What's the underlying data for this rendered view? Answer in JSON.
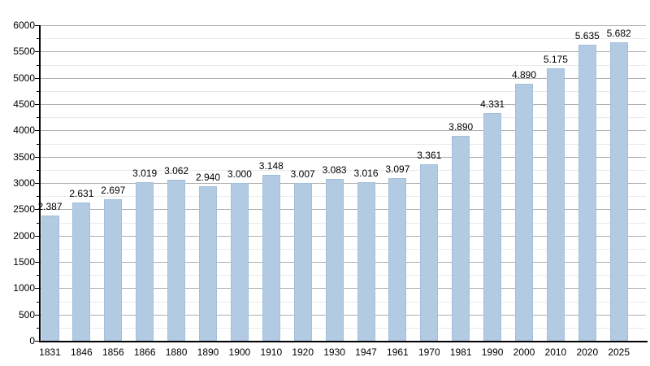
{
  "chart_data": {
    "type": "bar",
    "title": "",
    "xlabel": "",
    "ylabel": "",
    "categories": [
      "1831",
      "1846",
      "1856",
      "1866",
      "1880",
      "1890",
      "1900",
      "1910",
      "1920",
      "1930",
      "1947",
      "1961",
      "1970",
      "1981",
      "1990",
      "2000",
      "2010",
      "2020",
      "2025"
    ],
    "values": [
      2387,
      2631,
      2697,
      3019,
      3062,
      2940,
      3000,
      3148,
      3007,
      3083,
      3016,
      3097,
      3361,
      3890,
      4331,
      4890,
      5175,
      5635,
      5682
    ],
    "value_labels": [
      "2.387",
      "2.631",
      "2.697",
      "3.019",
      "3.062",
      "2.940",
      "3.000",
      "3.148",
      "3.007",
      "3.083",
      "3.016",
      "3.097",
      "3.361",
      "3.890",
      "4.331",
      "4.890",
      "5.175",
      "5.635",
      "5.682"
    ],
    "ylim": [
      0,
      6000
    ],
    "y_ticks": [
      0,
      500,
      1000,
      1500,
      2000,
      2500,
      3000,
      3500,
      4000,
      4500,
      5000,
      5500,
      6000
    ],
    "y_minor_step": 250,
    "grid": true,
    "legend": "none",
    "colors": {
      "bar_fill": "#b2cbe3",
      "bar_border": "#a2bfda",
      "grid_major": "#b0b0b0",
      "grid_minor": "#eaeaea",
      "axis": "#000000",
      "text": "#000000",
      "background": "#ffffff"
    }
  }
}
